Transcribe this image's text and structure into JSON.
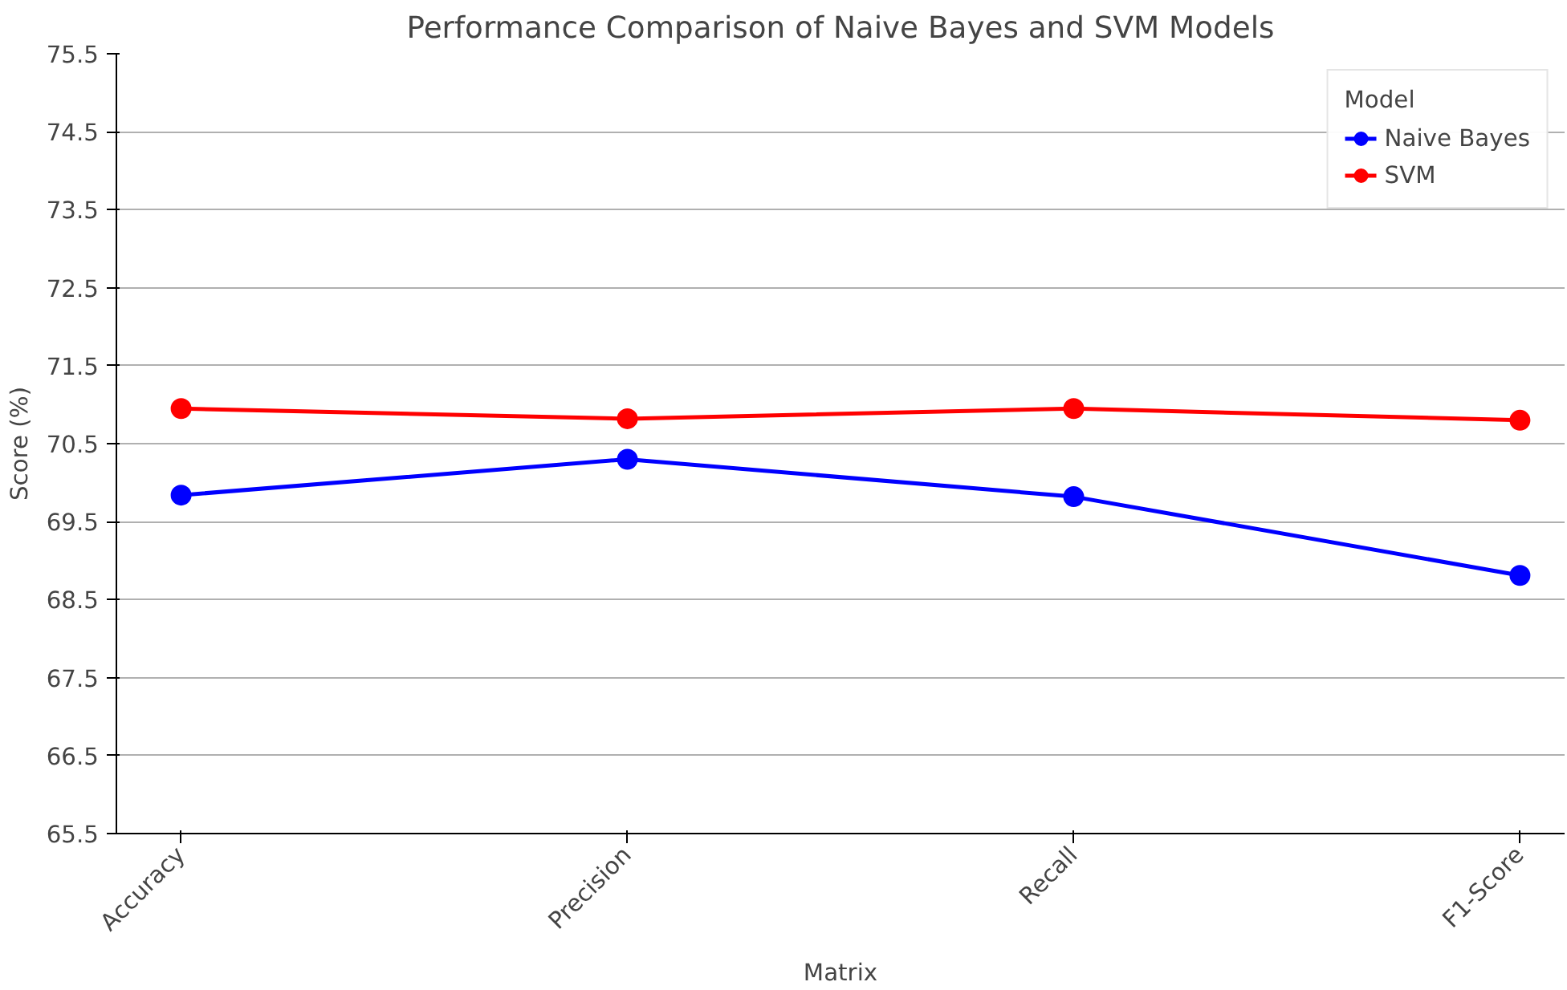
{
  "chart_data": {
    "type": "line",
    "title": "Performance Comparison of Naive Bayes and SVM Models",
    "xlabel": "Matrix",
    "ylabel": "Score (%)",
    "legend_title": "Model",
    "categories": [
      "Accuracy",
      "Precision",
      "Recall",
      "F1-Score"
    ],
    "series": [
      {
        "name": "Naive Bayes",
        "color": "#0000ff",
        "values": [
          69.84,
          70.3,
          69.82,
          68.81
        ]
      },
      {
        "name": "SVM",
        "color": "#ff0000",
        "values": [
          70.95,
          70.82,
          70.95,
          70.8
        ]
      }
    ],
    "ylim": [
      65.5,
      75.5
    ],
    "yticks": [
      65.5,
      66.5,
      67.5,
      68.5,
      69.5,
      70.5,
      71.5,
      72.5,
      73.5,
      74.5,
      75.5
    ],
    "grid": "y",
    "legend": "top right",
    "marker": "circle",
    "line_style": "solid"
  }
}
